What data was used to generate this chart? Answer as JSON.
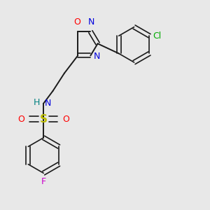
{
  "bg_color": "#e8e8e8",
  "bond_color": "#1a1a1a",
  "atoms": {
    "O_ring": {
      "label": "O",
      "color": "#ff0000"
    },
    "N_ring1": {
      "label": "N",
      "color": "#0000dd"
    },
    "N_ring2": {
      "label": "N",
      "color": "#0000dd"
    },
    "Cl": {
      "label": "Cl",
      "color": "#00aa00"
    },
    "N_amine": {
      "label": "N",
      "color": "#0000dd"
    },
    "H_amine": {
      "label": "H",
      "color": "#008080"
    },
    "S": {
      "label": "S",
      "color": "#bbbb00"
    },
    "O_sulfo1": {
      "label": "O",
      "color": "#ff0000"
    },
    "O_sulfo2": {
      "label": "O",
      "color": "#ff0000"
    },
    "F": {
      "label": "F",
      "color": "#cc00cc"
    }
  }
}
